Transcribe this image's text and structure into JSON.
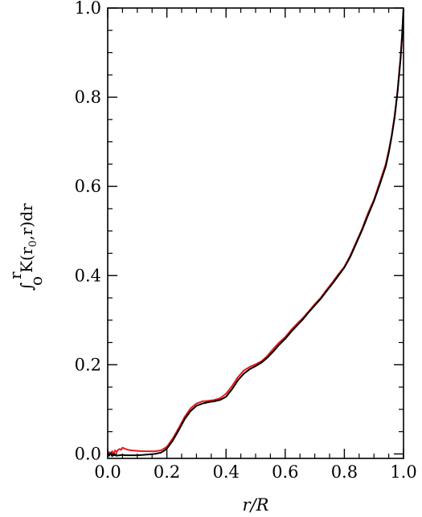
{
  "chart_data": {
    "type": "line",
    "title": "",
    "xlabel": "r/R",
    "ylabel": {
      "integral_symbol": "∫",
      "lower_limit": "o",
      "upper_limit": "r",
      "text": "K(r",
      "subscript": "0",
      "tail": ",r)dr"
    },
    "xlim": [
      0.0,
      1.0
    ],
    "ylim": [
      -0.01,
      1.0
    ],
    "xticks": [
      0.0,
      0.2,
      0.4,
      0.6,
      0.8,
      1.0
    ],
    "xtick_labels": [
      "0.0",
      "0.2",
      "0.4",
      "0.6",
      "0.8",
      "1.0"
    ],
    "yticks": [
      0.0,
      0.2,
      0.4,
      0.6,
      0.8,
      1.0
    ],
    "ytick_labels": [
      "0.0",
      "0.2",
      "0.4",
      "0.6",
      "0.8",
      "1.0"
    ],
    "grid": false,
    "legend": "none",
    "series": [
      {
        "color": "#e8161b",
        "x": [
          0.0,
          0.005,
          0.01,
          0.015,
          0.02,
          0.025,
          0.03,
          0.035,
          0.04,
          0.045,
          0.05,
          0.06,
          0.07,
          0.08,
          0.1,
          0.12,
          0.14,
          0.16,
          0.18,
          0.19,
          0.2,
          0.22,
          0.24,
          0.26,
          0.28,
          0.3,
          0.32,
          0.34,
          0.36,
          0.38,
          0.4,
          0.42,
          0.44,
          0.46,
          0.48,
          0.5,
          0.52,
          0.54,
          0.56,
          0.58,
          0.6,
          0.62,
          0.64,
          0.66,
          0.68,
          0.7,
          0.72,
          0.74,
          0.76,
          0.78,
          0.8,
          0.82,
          0.84,
          0.86,
          0.88,
          0.9,
          0.92,
          0.94,
          0.95,
          0.96,
          0.97,
          0.98,
          0.99,
          0.995,
          1.0
        ],
        "y": [
          0.0,
          0.004,
          0.001,
          0.006,
          0.001,
          0.008,
          0.004,
          0.009,
          0.011,
          0.009,
          0.014,
          0.011,
          0.009,
          0.008,
          0.007,
          0.006,
          0.006,
          0.006,
          0.008,
          0.012,
          0.016,
          0.035,
          0.058,
          0.083,
          0.102,
          0.113,
          0.118,
          0.119,
          0.121,
          0.125,
          0.135,
          0.152,
          0.172,
          0.187,
          0.195,
          0.201,
          0.208,
          0.22,
          0.236,
          0.25,
          0.262,
          0.278,
          0.292,
          0.305,
          0.32,
          0.336,
          0.35,
          0.368,
          0.385,
          0.403,
          0.42,
          0.445,
          0.475,
          0.505,
          0.54,
          0.57,
          0.61,
          0.65,
          0.68,
          0.715,
          0.76,
          0.815,
          0.89,
          0.94,
          1.0
        ]
      },
      {
        "color": "#000000",
        "x": [
          0.0,
          0.005,
          0.01,
          0.015,
          0.02,
          0.03,
          0.04,
          0.05,
          0.06,
          0.08,
          0.1,
          0.12,
          0.14,
          0.16,
          0.18,
          0.19,
          0.2,
          0.22,
          0.24,
          0.26,
          0.28,
          0.3,
          0.32,
          0.34,
          0.36,
          0.38,
          0.4,
          0.42,
          0.44,
          0.46,
          0.48,
          0.5,
          0.52,
          0.54,
          0.56,
          0.58,
          0.6,
          0.62,
          0.64,
          0.66,
          0.68,
          0.7,
          0.72,
          0.74,
          0.76,
          0.78,
          0.8,
          0.82,
          0.84,
          0.86,
          0.88,
          0.9,
          0.92,
          0.94,
          0.95,
          0.96,
          0.97,
          0.98,
          0.99,
          0.995,
          1.0
        ],
        "y": [
          0.0,
          -0.004,
          0.002,
          -0.005,
          -0.002,
          -0.004,
          -0.003,
          -0.002,
          -0.003,
          -0.003,
          -0.003,
          -0.002,
          -0.001,
          0.0,
          0.003,
          0.007,
          0.012,
          0.03,
          0.053,
          0.078,
          0.096,
          0.108,
          0.113,
          0.116,
          0.118,
          0.121,
          0.128,
          0.145,
          0.165,
          0.18,
          0.19,
          0.197,
          0.205,
          0.216,
          0.23,
          0.245,
          0.258,
          0.274,
          0.288,
          0.302,
          0.318,
          0.333,
          0.348,
          0.365,
          0.382,
          0.4,
          0.418,
          0.442,
          0.472,
          0.502,
          0.535,
          0.567,
          0.605,
          0.645,
          0.675,
          0.712,
          0.755,
          0.812,
          0.885,
          0.935,
          1.0
        ]
      }
    ]
  }
}
